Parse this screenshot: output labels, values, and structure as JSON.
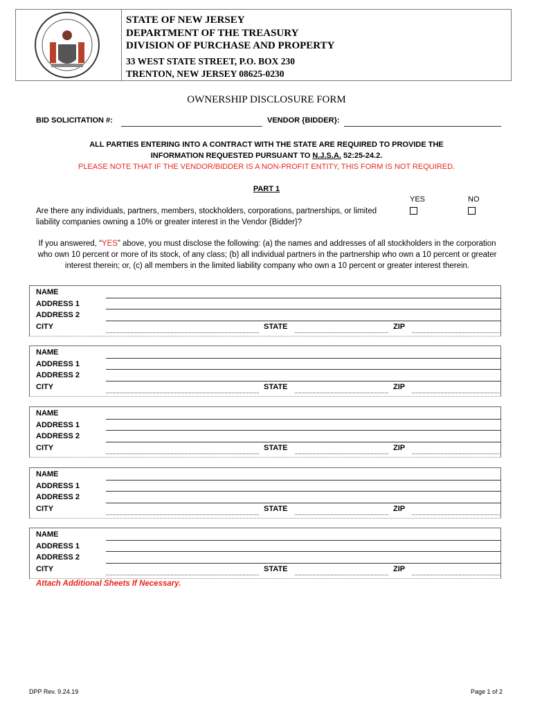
{
  "header": {
    "line1": "STATE OF NEW JERSEY",
    "line2": "DEPARTMENT OF THE TREASURY",
    "line3": "DIVISION OF PURCHASE AND PROPERTY",
    "address1": "33 WEST STATE STREET, P.O. BOX 230",
    "address2": "TRENTON, NEW JERSEY 08625-0230",
    "seal_text": "THE GREAT SEAL OF THE STATE OF NEW JERSEY"
  },
  "form_title": "OWNERSHIP DISCLOSURE FORM",
  "fields": {
    "bid_label": "BID SOLICITATION #:",
    "bid_value": "",
    "vendor_label": "VENDOR {BIDDER}:",
    "vendor_value": ""
  },
  "notice": {
    "line1": "ALL PARTIES ENTERING INTO A CONTRACT WITH THE STATE ARE REQUIRED TO PROVIDE THE",
    "line2_pre": "INFORMATION REQUESTED PURSUANT TO ",
    "line2_link": "N.J.S.A.",
    "line2_post": " 52:25-24.2.",
    "red": "PLEASE NOTE THAT IF THE VENDOR/BIDDER IS A NON-PROFIT ENTITY, THIS FORM IS NOT REQUIRED."
  },
  "part1": {
    "title": "PART 1",
    "yes": "YES",
    "no": "NO",
    "question": "Are there any individuals, partners, members, stockholders, corporations, partnerships, or limited liability companies owning a 10% or greater interest in the Vendor {Bidder}?",
    "yes_checked": false,
    "no_checked": false
  },
  "instructions": {
    "pre": "If you answered, “",
    "yes": "YES",
    "post": "” above, you must disclose the following: (a) the names and addresses of all stockholders in the corporation who own 10 percent or more of its stock, of any class; (b) all individual partners in the partnership who own a 10 percent or greater interest therein; or, (c) all members in the limited liability company who own a 10 percent or greater interest therein."
  },
  "block_labels": {
    "name": "NAME",
    "address1": "ADDRESS 1",
    "address2": "ADDRESS 2",
    "city": "CITY",
    "state": "STATE",
    "zip": "ZIP"
  },
  "attach_note": "Attach Additional Sheets If Necessary.",
  "footer": {
    "rev": "DPP Rev. 9.24.19",
    "page": "Page 1 of 2"
  },
  "colors": {
    "red": "#e8251f"
  }
}
